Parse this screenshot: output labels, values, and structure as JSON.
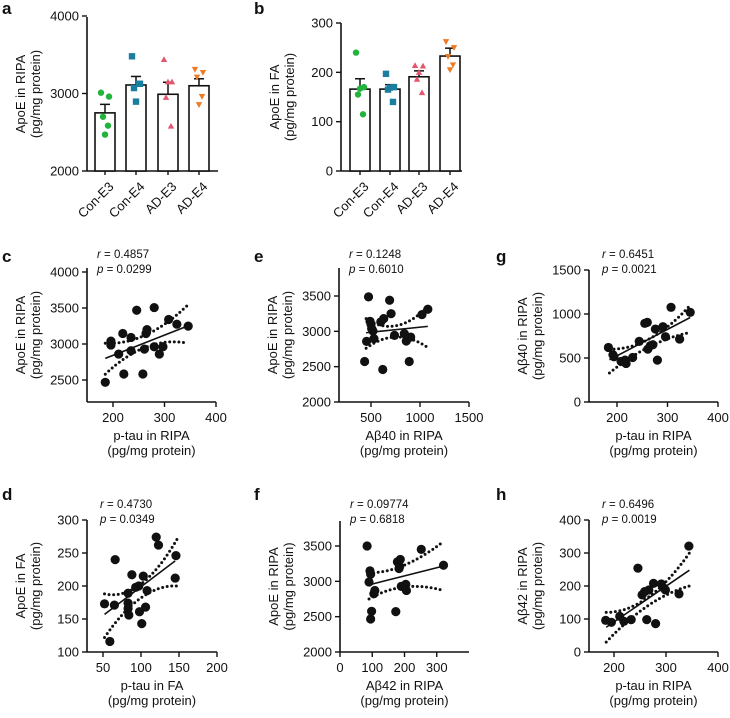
{
  "chart_data": [
    {
      "panel": "a",
      "type": "bar",
      "categories": [
        "Con-E3",
        "Con-E4",
        "AD-E3",
        "AD-E4"
      ],
      "ylabel": [
        "ApoE in RIPA",
        "(pg/mg protein)"
      ],
      "ylim": [
        2000,
        4000
      ],
      "yticks": [
        2000,
        3000,
        4000
      ],
      "means": [
        2750,
        3110,
        2990,
        3100
      ],
      "sem": [
        110,
        110,
        155,
        90
      ],
      "points": [
        [
          3010,
          2960,
          2700,
          2585,
          2470
        ],
        [
          3480,
          3125,
          3070,
          3125,
          2895
        ],
        [
          3440,
          3150,
          2950,
          2580,
          3150
        ],
        [
          3310,
          3270,
          3210,
          2960,
          2855
        ]
      ],
      "colors": [
        "#22b33c",
        "#1a7f9e",
        "#e3566e",
        "#f07a22"
      ],
      "markers": [
        "circle",
        "square",
        "triangle-up",
        "triangle-down"
      ]
    },
    {
      "panel": "b",
      "type": "bar",
      "categories": [
        "Con-E3",
        "Con-E4",
        "AD-E3",
        "AD-E4"
      ],
      "ylabel": [
        "ApoE in FA",
        "(pg/mg protein)"
      ],
      "ylim": [
        0,
        300
      ],
      "yticks": [
        0,
        100,
        200,
        300
      ],
      "means": [
        166,
        166,
        191,
        233
      ],
      "sem": [
        21,
        9,
        12,
        16
      ],
      "points": [
        [
          240,
          170,
          155,
          115,
          167
        ],
        [
          197,
          170,
          165,
          140,
          169
        ],
        [
          214,
          213,
          186,
          159,
          200
        ],
        [
          262,
          250,
          232,
          215,
          205
        ]
      ],
      "colors": [
        "#22b33c",
        "#1a7f9e",
        "#e3566e",
        "#f07a22"
      ],
      "markers": [
        "circle",
        "square",
        "triangle-up",
        "triangle-down"
      ]
    },
    {
      "panel": "c",
      "type": "scatter",
      "xlabel": [
        "p-tau in RIPA",
        "(pg/mg protein)"
      ],
      "ylabel": [
        "ApoE in RIPA",
        "(pg/mg protein)"
      ],
      "xticks": [
        200,
        300,
        400
      ],
      "yticks": [
        2500,
        3000,
        3500,
        4000
      ],
      "r": "r = 0.4857",
      "p": "p = 0.0299",
      "points": [
        [
          185,
          2468
        ],
        [
          196,
          3040
        ],
        [
          196,
          2985
        ],
        [
          211,
          2860
        ],
        [
          219,
          3146
        ],
        [
          221,
          2583
        ],
        [
          235,
          3091
        ],
        [
          235,
          2906
        ],
        [
          246,
          3469
        ],
        [
          258,
          2583
        ],
        [
          261,
          2929
        ],
        [
          266,
          3200
        ],
        [
          264,
          3146
        ],
        [
          280,
          2962
        ],
        [
          280,
          3506
        ],
        [
          290,
          2860
        ],
        [
          297,
          2962
        ],
        [
          308,
          3340
        ],
        [
          324,
          3275
        ],
        [
          346,
          3248
        ]
      ],
      "fit": [
        [
          185,
          2800
        ],
        [
          345,
          3250
        ]
      ],
      "ci_upper": [
        [
          185,
          3010
        ],
        [
          265,
          3130
        ],
        [
          345,
          3540
        ]
      ],
      "ci_lower": [
        [
          185,
          2580
        ],
        [
          265,
          2960
        ],
        [
          345,
          3010
        ]
      ]
    },
    {
      "panel": "e",
      "type": "scatter",
      "xlabel": [
        "Aβ40 in RIPA",
        "(pg/mg protein)"
      ],
      "ylabel": [
        "ApoE in RIPA",
        "(pg/mg protein)"
      ],
      "xticks": [
        500,
        1000,
        1500
      ],
      "yticks": [
        2000,
        2500,
        3000,
        3500
      ],
      "r": "r = 0.1248",
      "p": "p = 0.6010",
      "points": [
        [
          435,
          2573
        ],
        [
          455,
          2858
        ],
        [
          475,
          3488
        ],
        [
          490,
          3142
        ],
        [
          500,
          3100
        ],
        [
          507,
          3038
        ],
        [
          520,
          3005
        ],
        [
          530,
          2896
        ],
        [
          600,
          3133
        ],
        [
          620,
          2460
        ],
        [
          630,
          3180
        ],
        [
          690,
          3440
        ],
        [
          705,
          3250
        ],
        [
          740,
          2943
        ],
        [
          840,
          2967
        ],
        [
          860,
          2863
        ],
        [
          905,
          2919
        ],
        [
          890,
          2573
        ],
        [
          1020,
          3237
        ],
        [
          1080,
          3313
        ]
      ],
      "fit": [
        [
          450,
          2980
        ],
        [
          1080,
          3070
        ]
      ],
      "ci_upper": [
        [
          450,
          3180
        ],
        [
          760,
          3080
        ],
        [
          1080,
          3350
        ]
      ],
      "ci_lower": [
        [
          450,
          2760
        ],
        [
          760,
          2920
        ],
        [
          1080,
          2770
        ]
      ]
    },
    {
      "panel": "g",
      "type": "scatter",
      "xlabel": [
        "p-tau in RIPA",
        "(pg/mg protein)"
      ],
      "ylabel": [
        "Aβ40 in RIPA",
        "(pg/mg protein)"
      ],
      "xticks": [
        200,
        300,
        400
      ],
      "yticks": [
        0,
        500,
        1000,
        1500
      ],
      "r": "r = 0.6451",
      "p": "p = 0.0021",
      "points": [
        [
          183,
          620
        ],
        [
          192,
          537
        ],
        [
          194,
          514
        ],
        [
          208,
          461
        ],
        [
          216,
          476
        ],
        [
          218,
          438
        ],
        [
          231,
          506
        ],
        [
          244,
          689
        ],
        [
          255,
          894
        ],
        [
          260,
          905
        ],
        [
          261,
          601
        ],
        [
          266,
          639
        ],
        [
          271,
          651
        ],
        [
          276,
          829
        ],
        [
          280,
          476
        ],
        [
          291,
          856
        ],
        [
          296,
          742
        ],
        [
          307,
          1076
        ],
        [
          324,
          715
        ],
        [
          345,
          1019
        ]
      ],
      "fit": [
        [
          185,
          480
        ],
        [
          345,
          960
        ]
      ],
      "ci_upper": [
        [
          185,
          600
        ],
        [
          265,
          720
        ],
        [
          345,
          1100
        ]
      ],
      "ci_lower": [
        [
          185,
          330
        ],
        [
          265,
          630
        ],
        [
          345,
          790
        ]
      ]
    },
    {
      "panel": "d",
      "type": "scatter",
      "xlabel": [
        "p-tau in FA",
        "(pg/mg protein)"
      ],
      "ylabel": [
        "ApoE in FA",
        "(pg/mg protein)"
      ],
      "xticks": [
        50,
        100,
        150,
        200
      ],
      "yticks": [
        100,
        150,
        200,
        250,
        300
      ],
      "r": "r = 0.4730",
      "p": "p = 0.0349",
      "points": [
        [
          52,
          173
        ],
        [
          59,
          116
        ],
        [
          66,
          240
        ],
        [
          65,
          171
        ],
        [
          83,
          174
        ],
        [
          83,
          166
        ],
        [
          84,
          156
        ],
        [
          88,
          217
        ],
        [
          83,
          189
        ],
        [
          93,
          198
        ],
        [
          97,
          200
        ],
        [
          98,
          161
        ],
        [
          101,
          143
        ],
        [
          103,
          215
        ],
        [
          106,
          168
        ],
        [
          108,
          193
        ],
        [
          120,
          274
        ],
        [
          123,
          262
        ],
        [
          146,
          246
        ],
        [
          145,
          212
        ]
      ],
      "fit": [
        [
          52,
          157
        ],
        [
          145,
          238
        ]
      ],
      "ci_upper": [
        [
          52,
          188
        ],
        [
          100,
          203
        ],
        [
          148,
          272
        ]
      ],
      "ci_lower": [
        [
          52,
          122
        ],
        [
          100,
          182
        ],
        [
          148,
          200
        ]
      ]
    },
    {
      "panel": "f",
      "type": "scatter",
      "xlabel": [
        "Aβ42 in RIPA",
        "(pg/mg protein)"
      ],
      "ylabel": [
        "ApoE in RIPA",
        "(pg/mg protein)"
      ],
      "xticks": [
        0,
        100,
        200,
        300
      ],
      "yticks": [
        2000,
        2500,
        3000,
        3500
      ],
      "r": "r = 0.09774",
      "p": "p = 0.6818",
      "points": [
        [
          84,
          3500
        ],
        [
          93,
          3148
        ],
        [
          95,
          3100
        ],
        [
          90,
          2990
        ],
        [
          98,
          2576
        ],
        [
          95,
          2467
        ],
        [
          108,
          2871
        ],
        [
          105,
          2824
        ],
        [
          173,
          2571
        ],
        [
          178,
          3276
        ],
        [
          183,
          3181
        ],
        [
          187,
          3310
        ],
        [
          190,
          2929
        ],
        [
          198,
          2919
        ],
        [
          204,
          2957
        ],
        [
          206,
          2871
        ],
        [
          252,
          3452
        ],
        [
          321,
          3228
        ],
        [
          185,
          3210
        ]
      ],
      "fit": [
        [
          90,
          2950
        ],
        [
          320,
          3215
        ]
      ],
      "ci_upper": [
        [
          90,
          3120
        ],
        [
          200,
          3230
        ],
        [
          320,
          3560
        ]
      ],
      "ci_lower": [
        [
          90,
          2750
        ],
        [
          200,
          2920
        ],
        [
          320,
          2870
        ]
      ]
    },
    {
      "panel": "h",
      "type": "scatter",
      "xlabel": [
        "p-tau in RIPA",
        "(pg/mg protein)"
      ],
      "ylabel": [
        "Aβ42 in RIPA",
        "(pg/mg protein)"
      ],
      "xticks": [
        200,
        300,
        400
      ],
      "yticks": [
        0,
        100,
        200,
        300,
        400
      ],
      "r": "r = 0.6496",
      "p": "p = 0.0019",
      "points": [
        [
          184,
          96
        ],
        [
          195,
          90
        ],
        [
          211,
          108
        ],
        [
          219,
          93
        ],
        [
          233,
          98
        ],
        [
          246,
          254
        ],
        [
          254,
          173
        ],
        [
          259,
          183
        ],
        [
          263,
          98
        ],
        [
          267,
          188
        ],
        [
          276,
          208
        ],
        [
          280,
          86
        ],
        [
          291,
          206
        ],
        [
          294,
          196
        ],
        [
          299,
          188
        ],
        [
          325,
          176
        ],
        [
          344,
          321
        ]
      ],
      "fit": [
        [
          185,
          75
        ],
        [
          345,
          248
        ]
      ],
      "ci_upper": [
        [
          185,
          120
        ],
        [
          265,
          165
        ],
        [
          345,
          300
        ]
      ],
      "ci_lower": [
        [
          185,
          30
        ],
        [
          265,
          140
        ],
        [
          345,
          200
        ]
      ]
    }
  ]
}
